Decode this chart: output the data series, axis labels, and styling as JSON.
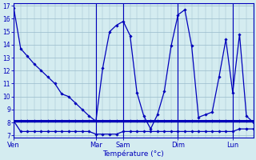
{
  "title": "",
  "xlabel": "Température (°c)",
  "bg_color": "#d4ecf0",
  "line_color": "#0000bb",
  "grid_color": "#99bbcc",
  "axis_color": "#0000bb",
  "tick_label_color": "#0000bb",
  "xlabel_color": "#0000bb",
  "ylim": [
    6.8,
    17.2
  ],
  "yticks": [
    7,
    8,
    9,
    10,
    11,
    12,
    13,
    14,
    15,
    16,
    17
  ],
  "day_labels": [
    "Ven",
    "Mar",
    "Sam",
    "Dim",
    "Lun"
  ],
  "day_x": [
    0,
    12,
    16,
    24,
    32
  ],
  "xlim": [
    0,
    35
  ],
  "num_points": 36,
  "series_main": [
    16.8,
    13.7,
    13.1,
    12.5,
    12.0,
    11.5,
    11.0,
    10.2,
    10.0,
    9.5,
    9.0,
    8.5,
    8.1,
    12.2,
    15.0,
    15.5,
    15.8,
    14.7,
    10.3,
    8.5,
    7.5,
    8.6,
    10.4,
    13.9,
    16.3,
    16.7,
    13.9,
    8.4,
    8.6,
    8.8,
    11.5,
    14.4,
    10.3,
    14.8,
    8.5,
    8.0
  ],
  "series_min": [
    8.1,
    7.3,
    7.3,
    7.3,
    7.3,
    7.3,
    7.3,
    7.3,
    7.3,
    7.3,
    7.3,
    7.3,
    7.1,
    7.1,
    7.1,
    7.1,
    7.3,
    7.3,
    7.3,
    7.3,
    7.3,
    7.3,
    7.3,
    7.3,
    7.3,
    7.3,
    7.3,
    7.3,
    7.3,
    7.3,
    7.3,
    7.3,
    7.3,
    7.5,
    7.5,
    7.5
  ],
  "series_flat": [
    8.1,
    8.1,
    8.1,
    8.1,
    8.1,
    8.1,
    8.1,
    8.1,
    8.1,
    8.1,
    8.1,
    8.1,
    8.1,
    8.1,
    8.1,
    8.1,
    8.1,
    8.1,
    8.1,
    8.1,
    8.1,
    8.1,
    8.1,
    8.1,
    8.1,
    8.1,
    8.1,
    8.1,
    8.1,
    8.1,
    8.1,
    8.1,
    8.1,
    8.1,
    8.1,
    8.1
  ],
  "vline_positions": [
    0,
    12,
    16,
    24,
    32
  ]
}
